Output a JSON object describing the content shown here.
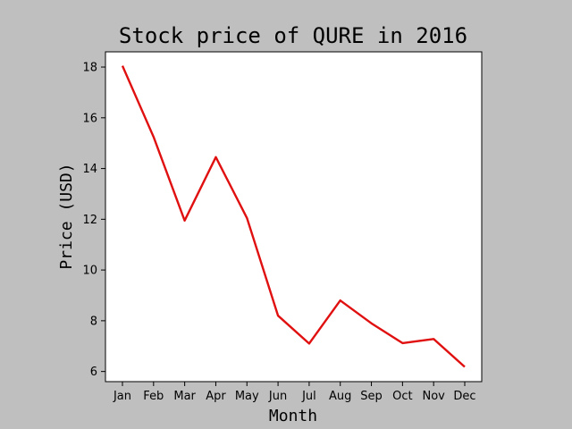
{
  "chart_data": {
    "type": "line",
    "title": "Stock price of QURE in 2016",
    "xlabel": "Month",
    "ylabel": "Price (USD)",
    "categories": [
      "Jan",
      "Feb",
      "Mar",
      "Apr",
      "May",
      "Jun",
      "Jul",
      "Aug",
      "Sep",
      "Oct",
      "Nov",
      "Dec"
    ],
    "series": [
      {
        "values": [
          18.05,
          15.25,
          11.95,
          14.45,
          12.05,
          8.2,
          7.1,
          8.8,
          7.9,
          7.12,
          7.28,
          6.18
        ],
        "color": "#e01010"
      }
    ],
    "ylim": [
      5.6,
      18.6
    ],
    "yticks": [
      6,
      8,
      10,
      12,
      14,
      16,
      18
    ],
    "grid": false,
    "background": "#bfbfbf",
    "plot_background": "#ffffff"
  }
}
